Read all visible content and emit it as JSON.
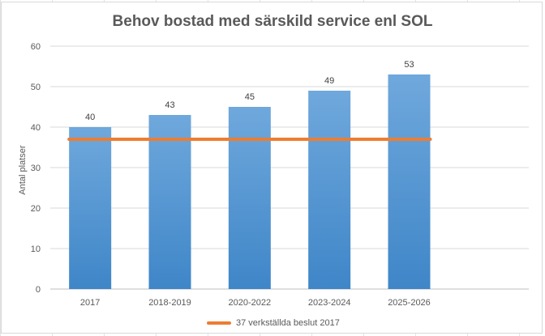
{
  "chart_data": {
    "type": "bar",
    "title": "Behov bostad med särskild service enl SOL",
    "ylabel": "Antal platser",
    "xlabel": "",
    "categories": [
      "2017",
      "2018-2019",
      "2020-2022",
      "2023-2024",
      "2025-2026"
    ],
    "series": [
      {
        "values": [
          40,
          43,
          45,
          49,
          53
        ],
        "color": "#5b9bd5"
      }
    ],
    "reference_line": {
      "name": "37 verkställda beslut 2017",
      "value": 37,
      "color": "#ed7d31"
    },
    "ylim": [
      0,
      60
    ],
    "yticks": [
      0,
      10,
      20,
      30,
      40,
      50,
      60
    ],
    "grid": true,
    "legend": "bottom"
  }
}
